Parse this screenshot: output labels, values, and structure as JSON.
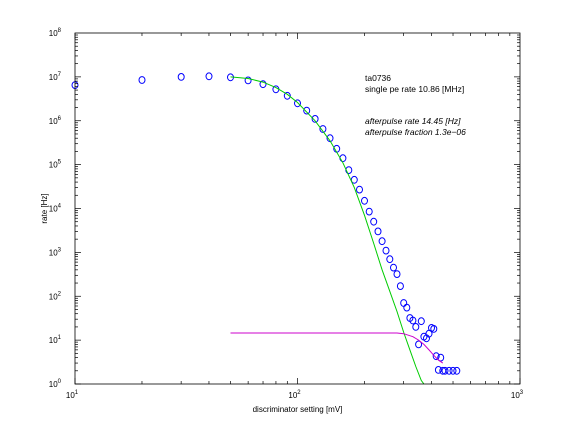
{
  "chart_data": {
    "type": "scatter",
    "xlabel": "discriminator setting [mV]",
    "ylabel": "rate [Hz]",
    "xscale": "log",
    "yscale": "log",
    "xlim": [
      10,
      1000
    ],
    "ylim": [
      1,
      100000000
    ],
    "grid": false,
    "x_ticks": [
      {
        "value": 10,
        "base": "10",
        "exp": "1"
      },
      {
        "value": 100,
        "base": "10",
        "exp": "2"
      },
      {
        "value": 1000,
        "base": "10",
        "exp": "3"
      }
    ],
    "y_ticks": [
      {
        "value": 1,
        "base": "10",
        "exp": "0"
      },
      {
        "value": 10,
        "base": "10",
        "exp": "1"
      },
      {
        "value": 100,
        "base": "10",
        "exp": "2"
      },
      {
        "value": 1000,
        "base": "10",
        "exp": "3"
      },
      {
        "value": 10000,
        "base": "10",
        "exp": "4"
      },
      {
        "value": 100000,
        "base": "10",
        "exp": "5"
      },
      {
        "value": 1000000,
        "base": "10",
        "exp": "6"
      },
      {
        "value": 10000000,
        "base": "10",
        "exp": "7"
      },
      {
        "value": 100000000,
        "base": "10",
        "exp": "8"
      }
    ],
    "annotations": [
      "ta0736",
      "single pe rate 10.86 [MHz]",
      "afterpulse rate 14.45 [Hz]",
      "afterpulse fraction 1.3e−06"
    ],
    "series": [
      {
        "style": "markers",
        "marker": "circle",
        "color": "#0000ff",
        "points": [
          [
            10,
            6500000
          ],
          [
            20,
            8500000
          ],
          [
            30,
            10000000
          ],
          [
            40,
            10300000
          ],
          [
            50,
            9800000
          ],
          [
            60,
            8300000
          ],
          [
            70,
            6800000
          ],
          [
            80,
            5200000
          ],
          [
            90,
            3700000
          ],
          [
            100,
            2500000
          ],
          [
            110,
            1700000
          ],
          [
            120,
            1100000
          ],
          [
            130,
            650000
          ],
          [
            140,
            400000
          ],
          [
            150,
            230000
          ],
          [
            160,
            140000
          ],
          [
            170,
            75000
          ],
          [
            180,
            45000
          ],
          [
            190,
            27000
          ],
          [
            200,
            15000
          ],
          [
            210,
            8500
          ],
          [
            220,
            5000
          ],
          [
            230,
            3000
          ],
          [
            240,
            1800
          ],
          [
            250,
            1100
          ],
          [
            260,
            700
          ],
          [
            270,
            450
          ],
          [
            280,
            320
          ],
          [
            290,
            170
          ],
          [
            300,
            70
          ],
          [
            310,
            55
          ],
          [
            320,
            32
          ],
          [
            330,
            28
          ],
          [
            340,
            20
          ],
          [
            350,
            8
          ],
          [
            360,
            27
          ],
          [
            370,
            12
          ],
          [
            380,
            11
          ],
          [
            390,
            14
          ],
          [
            400,
            19
          ],
          [
            410,
            18
          ],
          [
            420,
            4.3
          ],
          [
            430,
            2.1
          ],
          [
            440,
            4.0
          ],
          [
            450,
            2.0
          ],
          [
            460,
            2.0
          ],
          [
            480,
            2.0
          ],
          [
            500,
            2.0
          ],
          [
            520,
            2.0
          ]
        ]
      },
      {
        "style": "line",
        "color": "#00cc00",
        "points": [
          [
            50,
            10000000
          ],
          [
            60,
            9200000
          ],
          [
            70,
            7600000
          ],
          [
            80,
            5700000
          ],
          [
            90,
            4000000
          ],
          [
            100,
            2600000
          ],
          [
            120,
            1000000
          ],
          [
            140,
            350000
          ],
          [
            160,
            110000
          ],
          [
            180,
            30000
          ],
          [
            200,
            7000
          ],
          [
            220,
            1600
          ],
          [
            240,
            400
          ],
          [
            260,
            130
          ],
          [
            280,
            45
          ],
          [
            300,
            15
          ],
          [
            320,
            6
          ],
          [
            340,
            2.5
          ],
          [
            360,
            1.2
          ],
          [
            370,
            1
          ]
        ]
      },
      {
        "style": "line",
        "color": "#cc00cc",
        "points": [
          [
            50,
            14.5
          ],
          [
            280,
            14.5
          ],
          [
            300,
            14
          ],
          [
            330,
            12
          ],
          [
            350,
            10
          ],
          [
            370,
            8
          ],
          [
            390,
            6
          ],
          [
            410,
            4.5
          ],
          [
            430,
            3.5
          ],
          [
            450,
            3
          ]
        ]
      }
    ]
  }
}
